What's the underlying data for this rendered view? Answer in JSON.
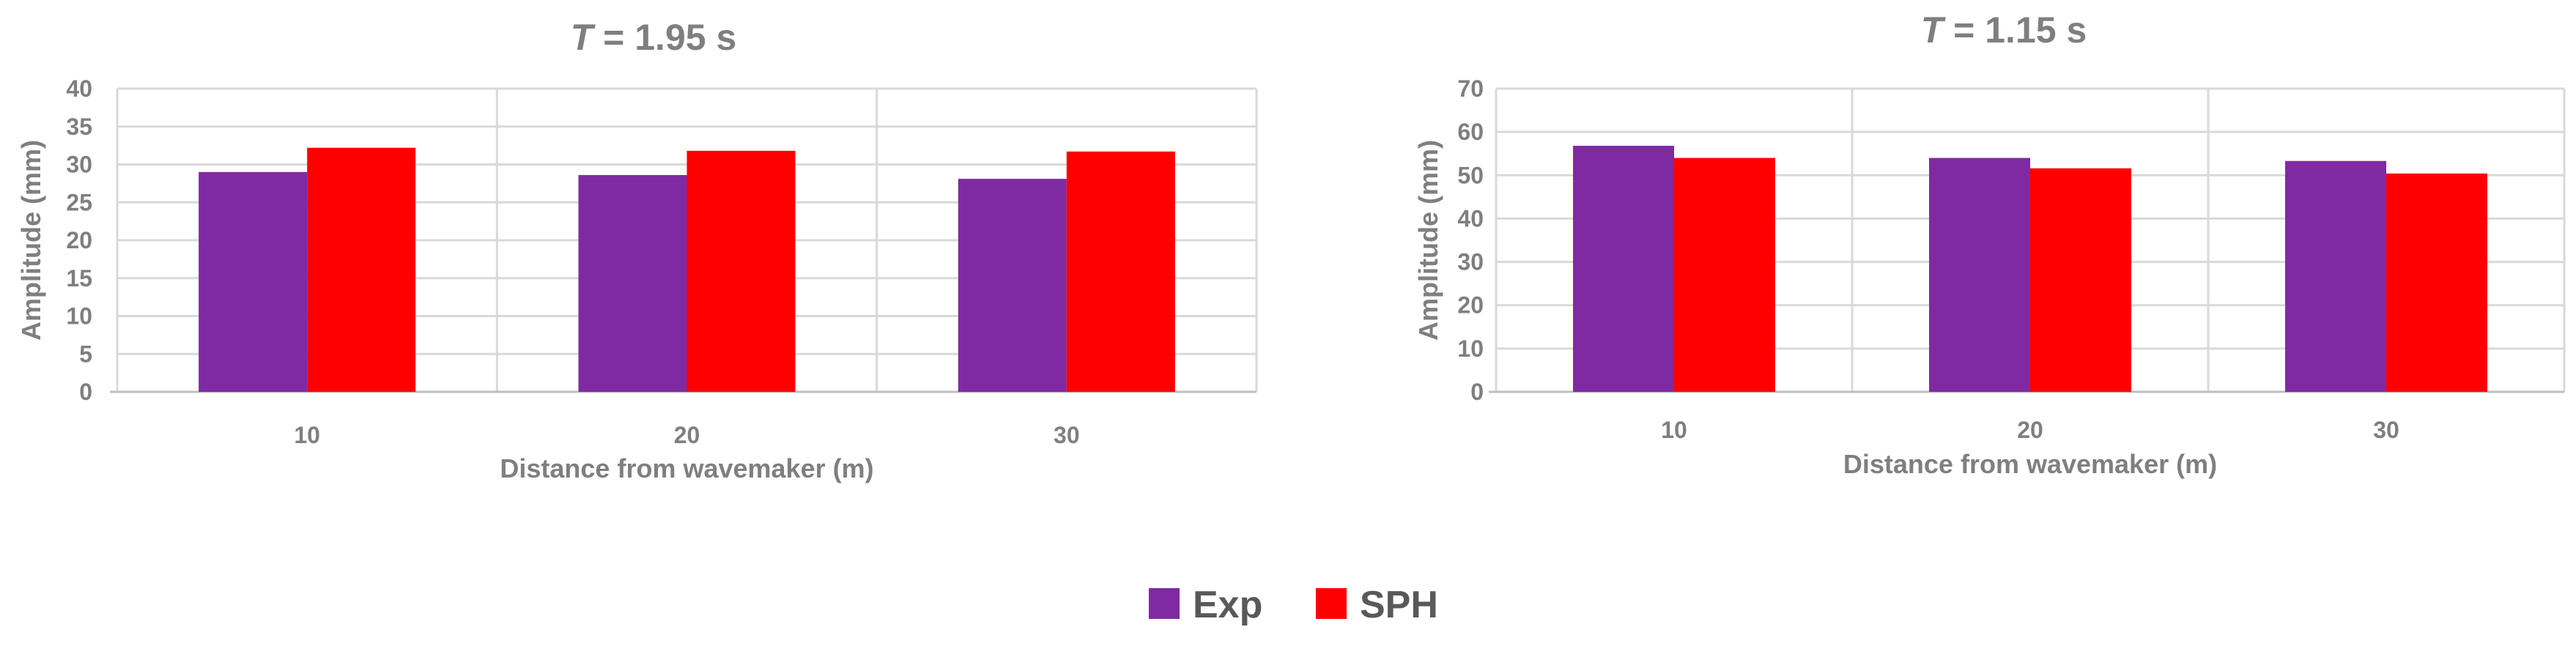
{
  "chart_data": [
    {
      "type": "bar",
      "title": "T = 1.95 s",
      "title_var": "T",
      "title_rest": " = 1.95 s",
      "xlabel": "Distance from wavemaker (m)",
      "ylabel": "Amplitude (mm)",
      "categories": [
        "10",
        "20",
        "30"
      ],
      "series": [
        {
          "name": "Exp",
          "values": [
            29.0,
            28.6,
            28.1
          ]
        },
        {
          "name": "SPH",
          "values": [
            32.2,
            31.8,
            31.7
          ]
        }
      ],
      "ylim": [
        0,
        40
      ],
      "yticks": [
        0,
        5,
        10,
        15,
        20,
        25,
        30,
        35,
        40
      ],
      "grid": true
    },
    {
      "type": "bar",
      "title": "T = 1.15 s",
      "title_var": "T",
      "title_rest": " = 1.15 s",
      "xlabel": "Distance from wavemaker (m)",
      "ylabel": "Amplitude (mm)",
      "categories": [
        "10",
        "20",
        "30"
      ],
      "series": [
        {
          "name": "Exp",
          "values": [
            56.8,
            54.0,
            53.3
          ]
        },
        {
          "name": "SPH",
          "values": [
            54.0,
            51.6,
            50.4
          ]
        }
      ],
      "ylim": [
        0,
        70
      ],
      "yticks": [
        0,
        10,
        20,
        30,
        40,
        50,
        60,
        70
      ],
      "grid": true
    }
  ],
  "legend": {
    "placement": "bottom-center",
    "items": [
      {
        "label": "Exp",
        "color": "#7F2AA3"
      },
      {
        "label": "SPH",
        "color": "#FF0000"
      }
    ]
  },
  "colors": {
    "exp": "#7F2AA3",
    "sph": "#FF0000",
    "grid": "#d9d9d9",
    "text": "#7f7f7f"
  }
}
